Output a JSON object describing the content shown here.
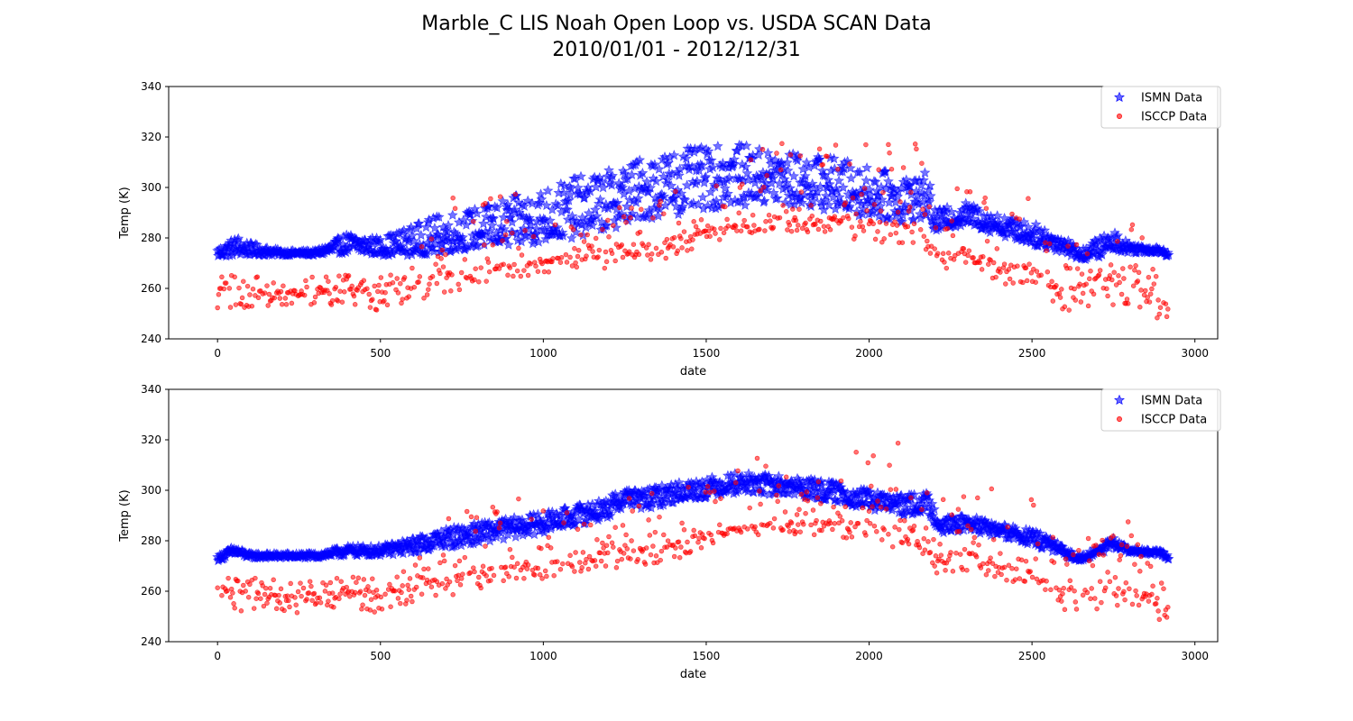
{
  "title_line1": "Marble_C LIS Noah Open Loop vs. USDA SCAN Data",
  "title_line2": "2010/01/01 - 2012/12/31",
  "colors": {
    "ismn": "#0000ff",
    "isccp": "#ff0000"
  },
  "chart_data": [
    {
      "type": "scatter",
      "xlabel": "date",
      "ylabel": "Temp (K)",
      "xlim": [
        -150,
        3070
      ],
      "ylim": [
        240,
        340
      ],
      "xticks": [
        0,
        500,
        1000,
        1500,
        2000,
        2500,
        3000
      ],
      "yticks": [
        240,
        260,
        280,
        300,
        320,
        340
      ],
      "legend": {
        "placement": "top-right",
        "entries": [
          "ISMN Data",
          "ISCCP Data"
        ]
      },
      "series": [
        {
          "name": "ISMN Data",
          "marker": "star",
          "x": [
            0,
            60,
            100,
            200,
            300,
            400,
            500,
            600,
            700,
            800,
            900,
            1000,
            1100,
            1200,
            1300,
            1400,
            1500,
            1600,
            1700,
            1800,
            1900,
            2000,
            2100,
            2180,
            2200,
            2300,
            2400,
            2500,
            2600,
            2650,
            2700,
            2750,
            2800,
            2900,
            2920
          ],
          "y": [
            274,
            276,
            275,
            274,
            274,
            277,
            276,
            277,
            280,
            282,
            284,
            287,
            290,
            293,
            298,
            301,
            303,
            305,
            304,
            302,
            300,
            297,
            295,
            296,
            286,
            289,
            285,
            281,
            277,
            273,
            275,
            278,
            276,
            275,
            273
          ],
          "spread_low": [
            2,
            3,
            2,
            1,
            1,
            3,
            3,
            4,
            6,
            6,
            8,
            9,
            10,
            10,
            11,
            12,
            12,
            12,
            12,
            10,
            10,
            9,
            9,
            8,
            4,
            4,
            4,
            4,
            3,
            2,
            3,
            3,
            2,
            1,
            1
          ],
          "spread_high": [
            2,
            5,
            3,
            1,
            1,
            5,
            4,
            8,
            10,
            10,
            12,
            13,
            14,
            14,
            14,
            14,
            13,
            12,
            11,
            11,
            12,
            11,
            10,
            10,
            5,
            5,
            4,
            5,
            4,
            2,
            5,
            5,
            2,
            1,
            1
          ]
        },
        {
          "name": "ISCCP Data",
          "marker": "circle",
          "x": [
            0,
            100,
            200,
            300,
            400,
            500,
            600,
            700,
            800,
            900,
            1000,
            1100,
            1200,
            1300,
            1400,
            1500,
            1600,
            1700,
            1800,
            1900,
            2000,
            2100,
            2150,
            2200,
            2300,
            2400,
            2500,
            2600,
            2700,
            2800,
            2900,
            2920
          ],
          "y": [
            260,
            260,
            258,
            259,
            260,
            259,
            262,
            266,
            268,
            270,
            271,
            273,
            276,
            277,
            279,
            283,
            285,
            287,
            288,
            288,
            287,
            285,
            285,
            274,
            276,
            270,
            268,
            259,
            265,
            262,
            256,
            252
          ],
          "spread_low": [
            8,
            8,
            8,
            6,
            6,
            8,
            7,
            8,
            8,
            6,
            6,
            6,
            8,
            7,
            7,
            5,
            4,
            4,
            6,
            6,
            10,
            8,
            7,
            7,
            8,
            8,
            8,
            8,
            12,
            8,
            10,
            2
          ],
          "spread_high": [
            6,
            6,
            6,
            6,
            6,
            6,
            8,
            30,
            28,
            28,
            22,
            20,
            18,
            22,
            22,
            22,
            30,
            35,
            28,
            30,
            30,
            35,
            34,
            20,
            28,
            30,
            30,
            20,
            18,
            28,
            8,
            2
          ]
        }
      ]
    },
    {
      "type": "scatter",
      "xlabel": "date",
      "ylabel": "Temp (K)",
      "xlim": [
        -150,
        3070
      ],
      "ylim": [
        240,
        340
      ],
      "xticks": [
        0,
        500,
        1000,
        1500,
        2000,
        2500,
        3000
      ],
      "yticks": [
        240,
        260,
        280,
        300,
        320,
        340
      ],
      "legend": {
        "placement": "top-right",
        "entries": [
          "ISMN Data",
          "ISCCP Data"
        ]
      },
      "series": [
        {
          "name": "ISMN Data",
          "marker": "star",
          "x": [
            0,
            50,
            100,
            200,
            300,
            400,
            500,
            600,
            700,
            800,
            900,
            1000,
            1100,
            1200,
            1260,
            1300,
            1400,
            1500,
            1600,
            1700,
            1800,
            1900,
            2000,
            2100,
            2180,
            2220,
            2300,
            2400,
            2500,
            2550,
            2600,
            2650,
            2750,
            2800,
            2900,
            2920
          ],
          "y": [
            273,
            276,
            274,
            274,
            274,
            276,
            276,
            278,
            281,
            283,
            285,
            287,
            290,
            293,
            298,
            296,
            299,
            301,
            303,
            302,
            301,
            299,
            296,
            294,
            295,
            286,
            287,
            284,
            281,
            279,
            275,
            273,
            279,
            276,
            275,
            273
          ],
          "spread_low": [
            1,
            2,
            1,
            1,
            1,
            2,
            2,
            3,
            4,
            4,
            4,
            4,
            4,
            4,
            4,
            4,
            4,
            4,
            4,
            4,
            4,
            4,
            4,
            4,
            4,
            3,
            3,
            3,
            3,
            3,
            2,
            1,
            2,
            1,
            1,
            1
          ],
          "spread_high": [
            1,
            2,
            1,
            1,
            1,
            2,
            2,
            3,
            4,
            4,
            4,
            4,
            4,
            4,
            4,
            4,
            4,
            4,
            4,
            4,
            4,
            4,
            4,
            4,
            4,
            3,
            3,
            3,
            3,
            3,
            2,
            1,
            2,
            1,
            1,
            1
          ]
        },
        {
          "name": "ISCCP Data",
          "marker": "circle",
          "x": [
            0,
            100,
            200,
            300,
            400,
            500,
            600,
            700,
            800,
            900,
            1000,
            1100,
            1200,
            1300,
            1400,
            1500,
            1600,
            1700,
            1800,
            1900,
            2000,
            2100,
            2150,
            2200,
            2300,
            2400,
            2500,
            2600,
            2700,
            2800,
            2900,
            2920
          ],
          "y": [
            260,
            260,
            258,
            259,
            260,
            259,
            262,
            266,
            268,
            270,
            271,
            273,
            276,
            277,
            279,
            283,
            285,
            287,
            288,
            288,
            287,
            285,
            285,
            274,
            276,
            270,
            268,
            259,
            265,
            262,
            256,
            252
          ],
          "spread_low": [
            8,
            8,
            8,
            6,
            6,
            8,
            7,
            8,
            8,
            6,
            6,
            6,
            8,
            7,
            7,
            5,
            4,
            4,
            6,
            6,
            10,
            8,
            7,
            7,
            8,
            8,
            8,
            8,
            12,
            8,
            10,
            2
          ],
          "spread_high": [
            6,
            6,
            6,
            6,
            6,
            6,
            8,
            30,
            28,
            28,
            22,
            20,
            18,
            22,
            22,
            22,
            30,
            35,
            28,
            30,
            30,
            35,
            34,
            20,
            28,
            30,
            30,
            20,
            18,
            28,
            8,
            2
          ]
        }
      ]
    }
  ]
}
